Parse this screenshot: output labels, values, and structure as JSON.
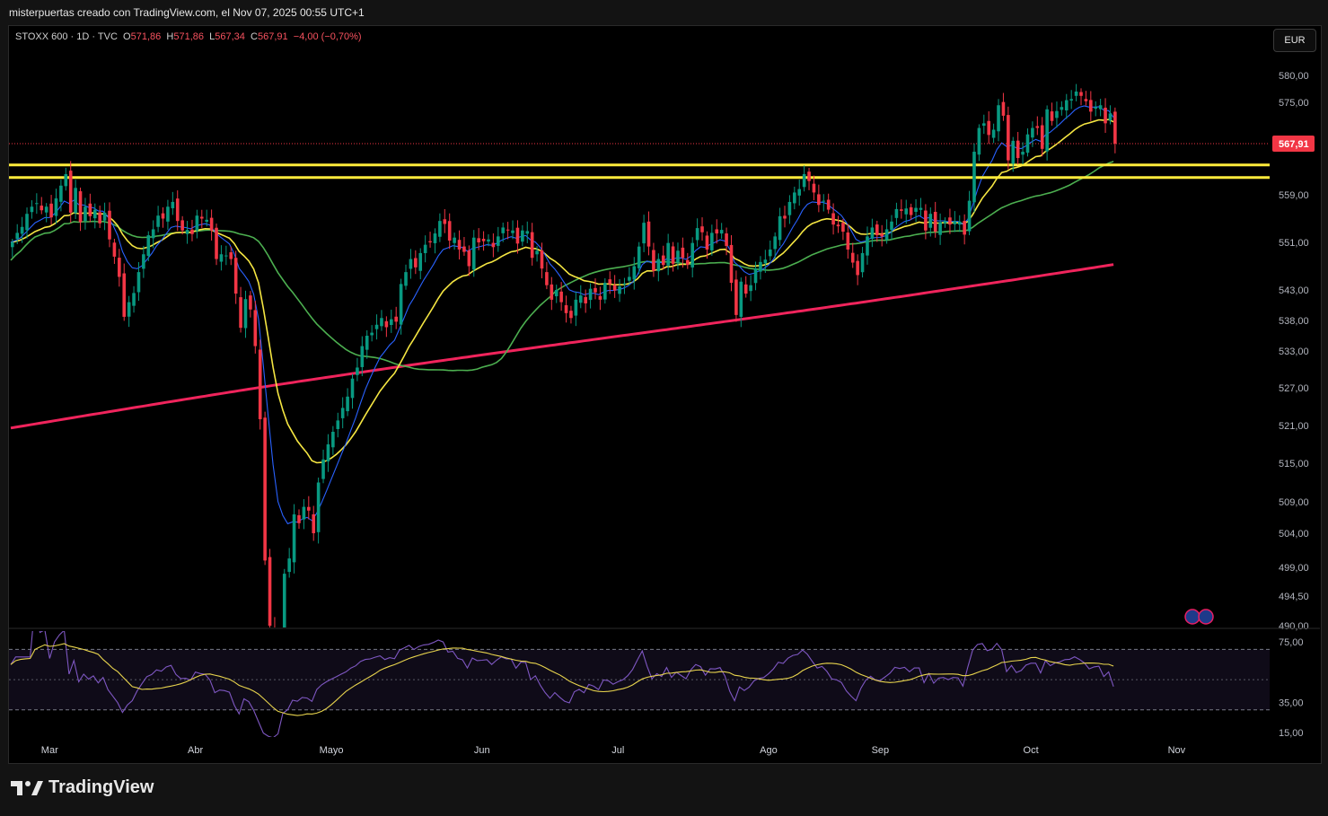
{
  "header": {
    "caption": "misterpuertas creado con TradingView.com, el Nov 07, 2025 00:55 UTC+1"
  },
  "legend": {
    "symbol": "STOXX 600 · 1D · TVC",
    "o_label": "O",
    "o": "571,86",
    "h_label": "H",
    "h": "571,86",
    "l_label": "L",
    "l": "567,34",
    "c_label": "C",
    "c": "567,91",
    "change": "−4,00 (−0,70%)"
  },
  "currency": "EUR",
  "footer": {
    "brand": "TradingView"
  },
  "colors": {
    "up": "#089981",
    "down": "#f23645",
    "ema_fast": "#2962ff",
    "ema_mid": "#f5e642",
    "sma_50": "#4caf50",
    "sma_200": "#f0245c",
    "support": "#ffeb3b",
    "rsi": "#7e57c2",
    "rsi_ma": "#e8d44d"
  },
  "chart_data": {
    "type": "candlestick",
    "price_axis": {
      "ticks": [
        580,
        575,
        567.91,
        559,
        551,
        543,
        538,
        533,
        527,
        521,
        515,
        509,
        504,
        499,
        494.5,
        490
      ],
      "tick_labels": [
        "580,00",
        "575,00",
        "567,91",
        "559,00",
        "551,00",
        "543,00",
        "538,00",
        "533,00",
        "527,00",
        "521,00",
        "515,00",
        "509,00",
        "504,00",
        "499,00",
        "494,50",
        "490,00"
      ],
      "last_price_label": "567,91",
      "last_price": 567.91
    },
    "x_axis": {
      "months": [
        "Mar",
        "Abr",
        "Mayo",
        "Jun",
        "Jul",
        "Ago",
        "Sep",
        "Oct",
        "Nov"
      ]
    },
    "support_lines": [
      564.2,
      562.0
    ],
    "candles_close": [
      551.0,
      552.6,
      553.6,
      555.8,
      557.0,
      557.6,
      556.4,
      557.0,
      555.2,
      558.4,
      560.6,
      562.6,
      556.0,
      560.2,
      554.4,
      557.0,
      555.4,
      556.5,
      554.2,
      556.0,
      551.5,
      548.6,
      545.2,
      538.6,
      541.0,
      542.5,
      546.0,
      549.0,
      552.2,
      553.2,
      555.5,
      555.0,
      557.0,
      557.8,
      554.6,
      553.0,
      553.1,
      552.4,
      555.5,
      555.0,
      554.8,
      553.0,
      548.2,
      549.0,
      548.8,
      548.2,
      542.4,
      536.8,
      541.5,
      539.8,
      533.8,
      522.0,
      500.0,
      490.0,
      484.0,
      486.0,
      498.0,
      500.3,
      507.0,
      505.6,
      508.2,
      507.6,
      504.0,
      512.0,
      515.6,
      518.0,
      520.0,
      521.8,
      523.8,
      525.6,
      528.5,
      530.3,
      533.8,
      535.5,
      536.0,
      537.3,
      538.4,
      536.9,
      538.2,
      537.8,
      544.0,
      546.0,
      548.2,
      546.8,
      549.2,
      550.6,
      551.0,
      552.5,
      554.6,
      554.1,
      551.3,
      551.8,
      549.8,
      549.4,
      547.0,
      551.8,
      551.0,
      551.2,
      551.5,
      550.2,
      552.0,
      553.5,
      553.0,
      553.0,
      550.8,
      553.0,
      552.9,
      548.4,
      549.6,
      546.6,
      543.8,
      541.4,
      543.0,
      541.0,
      539.2,
      538.4,
      541.4,
      542.1,
      540.8,
      543.2,
      542.6,
      541.4,
      544.2,
      544.0,
      542.9,
      543.6,
      544.1,
      545.2,
      547.0,
      550.3,
      554.3,
      550.3,
      546.2,
      548.2,
      547.2,
      550.9,
      547.4,
      549.6,
      548.4,
      547.2,
      550.9,
      553.4,
      552.7,
      549.8,
      552.6,
      552.5,
      553.1,
      550.4,
      544.2,
      538.9,
      544.4,
      542.4,
      543.8,
      546.6,
      547.7,
      548.1,
      549.8,
      552.0,
      555.4,
      555.0,
      557.8,
      559.4,
      560.0,
      562.6,
      561.4,
      559.4,
      557.3,
      558.0,
      556.5,
      554.0,
      553.7,
      552.8,
      549.8,
      547.6,
      545.5,
      549.2,
      552.0,
      553.5,
      552.2,
      552.0,
      553.2,
      554.5,
      556.6,
      556.3,
      556.7,
      555.6,
      556.8,
      556.8,
      553.0,
      555.8,
      552.8,
      554.4,
      554.6,
      554.0,
      554.6,
      554.5,
      552.3,
      558.0,
      566.5,
      570.6,
      571.4,
      569.4,
      570.3,
      574.5,
      572.7,
      565.0,
      568.4,
      565.4,
      566.5,
      569.5,
      570.6,
      570.6,
      567.0,
      573.8,
      571.8,
      573.5,
      574.2,
      575.4,
      575.6,
      577.0,
      576.2,
      575.2,
      573.4,
      574.2,
      574.5,
      571.4,
      573.1,
      567.9
    ],
    "rsi": {
      "levels": [
        75,
        35,
        15
      ],
      "tick_labels": [
        "75,00",
        "35,00",
        "15,00"
      ],
      "upper_band": 70,
      "lower_band": 30,
      "last": 52
    }
  }
}
